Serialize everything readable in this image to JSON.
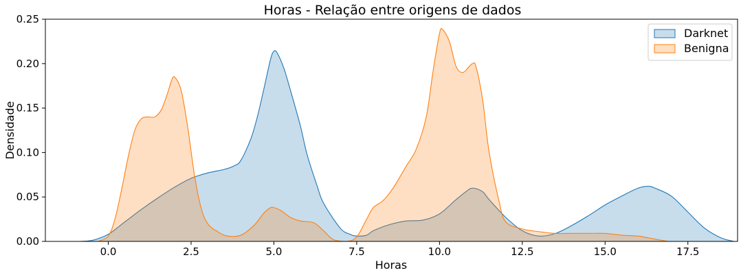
{
  "chart_data": {
    "type": "area",
    "title": "Horas - Relação entre origens de dados",
    "xlabel": "Horas",
    "ylabel": "Densidade",
    "xlim": [
      -1.9,
      19.0
    ],
    "ylim": [
      0,
      0.25
    ],
    "xticks": [
      0.0,
      2.5,
      5.0,
      7.5,
      10.0,
      12.5,
      15.0,
      17.5
    ],
    "xtick_labels": [
      "0.0",
      "2.5",
      "5.0",
      "7.5",
      "10.0",
      "12.5",
      "15.0",
      "17.5"
    ],
    "yticks": [
      0.0,
      0.05,
      0.1,
      0.15,
      0.2,
      0.25
    ],
    "ytick_labels": [
      "0.00",
      "0.05",
      "0.10",
      "0.15",
      "0.20",
      "0.25"
    ],
    "grid": false,
    "legend": {
      "placement": "top-right"
    },
    "series": [
      {
        "name": "Darknet",
        "color": "#1f77b4",
        "fill": "#c5daee",
        "x": [
          -0.9,
          -0.5,
          0.0,
          0.5,
          1.0,
          1.5,
          2.0,
          2.5,
          3.0,
          3.5,
          3.8,
          4.0,
          4.3,
          4.5,
          4.7,
          4.9,
          5.0,
          5.1,
          5.3,
          5.5,
          5.8,
          6.0,
          6.3,
          6.5,
          7.0,
          7.3,
          7.5,
          7.8,
          8.0,
          8.5,
          9.0,
          9.5,
          10.0,
          10.5,
          10.8,
          11.0,
          11.3,
          11.5,
          12.0,
          12.5,
          13.0,
          13.5,
          14.0,
          14.5,
          15.0,
          15.5,
          16.0,
          16.3,
          16.5,
          17.0,
          17.5,
          18.0,
          18.5,
          18.9
        ],
        "y": [
          0.0,
          0.001,
          0.008,
          0.022,
          0.036,
          0.049,
          0.061,
          0.071,
          0.077,
          0.081,
          0.085,
          0.091,
          0.115,
          0.14,
          0.172,
          0.205,
          0.214,
          0.212,
          0.195,
          0.17,
          0.13,
          0.098,
          0.063,
          0.043,
          0.015,
          0.008,
          0.006,
          0.007,
          0.012,
          0.019,
          0.023,
          0.024,
          0.031,
          0.047,
          0.056,
          0.06,
          0.056,
          0.047,
          0.027,
          0.012,
          0.006,
          0.009,
          0.018,
          0.029,
          0.041,
          0.051,
          0.06,
          0.062,
          0.06,
          0.051,
          0.033,
          0.015,
          0.004,
          0.0
        ]
      },
      {
        "name": "Benigna",
        "color": "#ff7f0e",
        "fill": "#fdd7b4",
        "x": [
          -0.3,
          0.0,
          0.2,
          0.4,
          0.6,
          0.8,
          1.0,
          1.2,
          1.4,
          1.6,
          1.8,
          1.9,
          2.0,
          2.2,
          2.4,
          2.6,
          2.8,
          3.0,
          3.3,
          3.6,
          4.0,
          4.4,
          4.7,
          4.9,
          5.0,
          5.2,
          5.5,
          5.8,
          6.2,
          6.5,
          6.8,
          7.2,
          7.5,
          7.8,
          8.0,
          8.3,
          8.6,
          9.0,
          9.3,
          9.6,
          9.8,
          10.0,
          10.1,
          10.3,
          10.5,
          10.7,
          10.9,
          11.0,
          11.1,
          11.3,
          11.5,
          11.8,
          12.0,
          12.5,
          13.0,
          13.5,
          14.0,
          14.5,
          15.0,
          15.5,
          16.0,
          16.3,
          16.6,
          16.9
        ],
        "y": [
          0.0,
          0.006,
          0.025,
          0.058,
          0.095,
          0.125,
          0.138,
          0.14,
          0.14,
          0.148,
          0.168,
          0.18,
          0.185,
          0.17,
          0.128,
          0.075,
          0.038,
          0.02,
          0.011,
          0.006,
          0.007,
          0.018,
          0.032,
          0.038,
          0.038,
          0.035,
          0.027,
          0.023,
          0.021,
          0.012,
          0.002,
          0.0,
          0.005,
          0.025,
          0.038,
          0.046,
          0.06,
          0.085,
          0.104,
          0.14,
          0.19,
          0.234,
          0.238,
          0.225,
          0.197,
          0.19,
          0.197,
          0.2,
          0.197,
          0.16,
          0.1,
          0.045,
          0.022,
          0.014,
          0.011,
          0.009,
          0.009,
          0.009,
          0.009,
          0.007,
          0.006,
          0.004,
          0.002,
          0.0
        ]
      }
    ]
  }
}
